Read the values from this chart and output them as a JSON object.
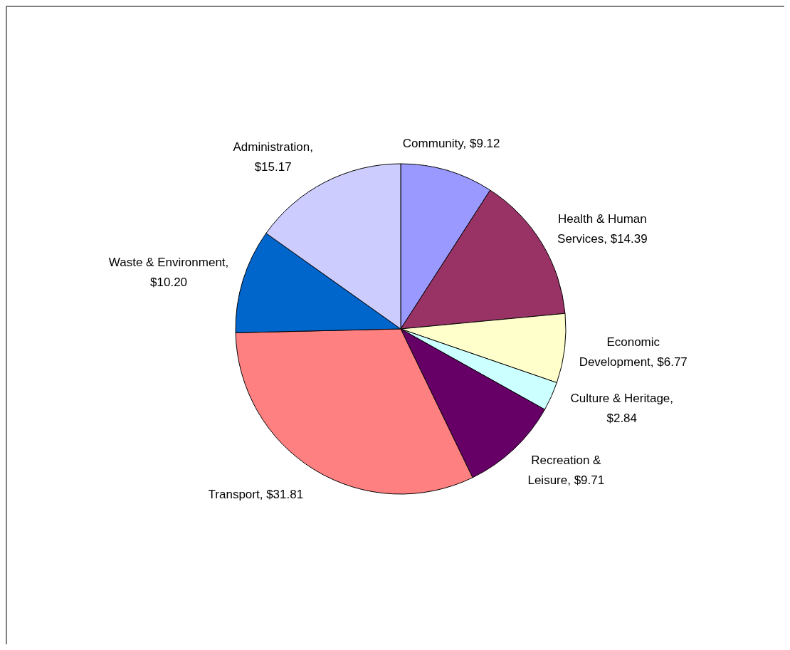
{
  "chart_data": {
    "type": "pie",
    "categories": [
      "Community, $9.12",
      "Health & Human Services, $14.39",
      "Economic Development, $6.77",
      "Culture & Heritage, $2.84",
      "Recreation & Leisure, $9.71",
      "Transport, $31.81",
      "Waste & Environment, $10.20",
      "Administration, $15.17"
    ],
    "values": [
      9.12,
      14.39,
      6.77,
      2.84,
      9.71,
      31.81,
      10.2,
      15.17
    ],
    "colors": [
      "#9999ff",
      "#993366",
      "#ffffcc",
      "#ccffff",
      "#660066",
      "#ff8080",
      "#0066cc",
      "#ccccff"
    ],
    "legend": false
  }
}
